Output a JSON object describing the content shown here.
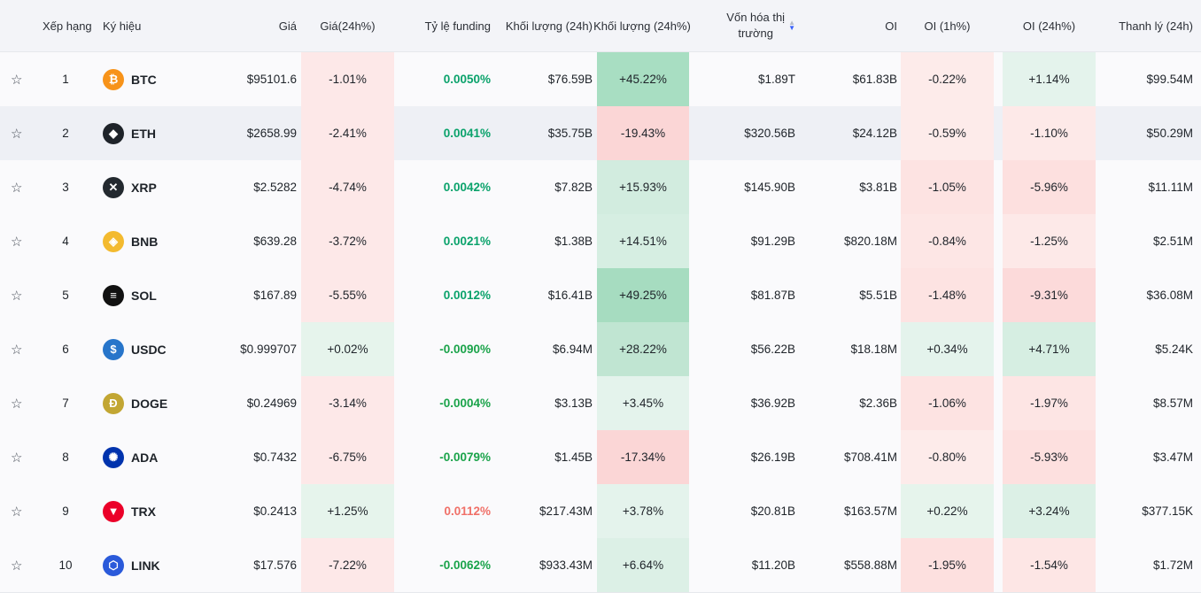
{
  "header": {
    "rank": "Xếp hạng",
    "symbol": "Ký hiệu",
    "price": "Giá",
    "price_change": "Giá(24h%)",
    "funding": "Tỷ lệ funding",
    "volume": "Khối lượng (24h)",
    "volume_change": "Khối lượng (24h%)",
    "market_cap_line1": "Vốn hóa thị",
    "market_cap_line2": "trường",
    "oi": "OI",
    "oi_1h": "OI (1h%)",
    "oi_24h": "OI (24h%)",
    "liquidation": "Thanh lý (24h)"
  },
  "colors": {
    "pink": "#fde8e8",
    "pink_strong": "#fbd6d6",
    "green_light": "#e4f3ec",
    "green_mid": "#cdeadb",
    "green_strong": "#acdfc5",
    "funding_positive": "#0aa26b",
    "funding_negative": "#1a9c3a",
    "funding_high": "#f07068"
  },
  "rows": [
    {
      "rank": "1",
      "symbol": "BTC",
      "icon": "btc-icon",
      "icon_color": "#f7931a",
      "icon_glyph": "₿",
      "price": "$95101.6",
      "price_change": "-1.01%",
      "funding": "0.0050%",
      "volume": "$76.59B",
      "volume_change": "+45.22%",
      "market_cap": "$1.89T",
      "oi": "$61.83B",
      "oi_1h": "-0.22%",
      "oi_24h": "+1.14%",
      "liquidation": "$99.54M"
    },
    {
      "rank": "2",
      "symbol": "ETH",
      "icon": "eth-icon",
      "icon_color": "#1e2329",
      "icon_glyph": "◆",
      "price": "$2658.99",
      "price_change": "-2.41%",
      "funding": "0.0041%",
      "volume": "$35.75B",
      "volume_change": "-19.43%",
      "market_cap": "$320.56B",
      "oi": "$24.12B",
      "oi_1h": "-0.59%",
      "oi_24h": "-1.10%",
      "liquidation": "$50.29M"
    },
    {
      "rank": "3",
      "symbol": "XRP",
      "icon": "xrp-icon",
      "icon_color": "#23292f",
      "icon_glyph": "✕",
      "price": "$2.5282",
      "price_change": "-4.74%",
      "funding": "0.0042%",
      "volume": "$7.82B",
      "volume_change": "+15.93%",
      "market_cap": "$145.90B",
      "oi": "$3.81B",
      "oi_1h": "-1.05%",
      "oi_24h": "-5.96%",
      "liquidation": "$11.11M"
    },
    {
      "rank": "4",
      "symbol": "BNB",
      "icon": "bnb-icon",
      "icon_color": "#f3ba2f",
      "icon_glyph": "◈",
      "price": "$639.28",
      "price_change": "-3.72%",
      "funding": "0.0021%",
      "volume": "$1.38B",
      "volume_change": "+14.51%",
      "market_cap": "$91.29B",
      "oi": "$820.18M",
      "oi_1h": "-0.84%",
      "oi_24h": "-1.25%",
      "liquidation": "$2.51M"
    },
    {
      "rank": "5",
      "symbol": "SOL",
      "icon": "sol-icon",
      "icon_color": "#111111",
      "icon_glyph": "≡",
      "price": "$167.89",
      "price_change": "-5.55%",
      "funding": "0.0012%",
      "volume": "$16.41B",
      "volume_change": "+49.25%",
      "market_cap": "$81.87B",
      "oi": "$5.51B",
      "oi_1h": "-1.48%",
      "oi_24h": "-9.31%",
      "liquidation": "$36.08M"
    },
    {
      "rank": "6",
      "symbol": "USDC",
      "icon": "usdc-icon",
      "icon_color": "#2775ca",
      "icon_glyph": "$",
      "price": "$0.999707",
      "price_change": "+0.02%",
      "funding": "-0.0090%",
      "volume": "$6.94M",
      "volume_change": "+28.22%",
      "market_cap": "$56.22B",
      "oi": "$18.18M",
      "oi_1h": "+0.34%",
      "oi_24h": "+4.71%",
      "liquidation": "$5.24K"
    },
    {
      "rank": "7",
      "symbol": "DOGE",
      "icon": "doge-icon",
      "icon_color": "#c2a633",
      "icon_glyph": "Ð",
      "price": "$0.24969",
      "price_change": "-3.14%",
      "funding": "-0.0004%",
      "volume": "$3.13B",
      "volume_change": "+3.45%",
      "market_cap": "$36.92B",
      "oi": "$2.36B",
      "oi_1h": "-1.06%",
      "oi_24h": "-1.97%",
      "liquidation": "$8.57M"
    },
    {
      "rank": "8",
      "symbol": "ADA",
      "icon": "ada-icon",
      "icon_color": "#0033ad",
      "icon_glyph": "✺",
      "price": "$0.7432",
      "price_change": "-6.75%",
      "funding": "-0.0079%",
      "volume": "$1.45B",
      "volume_change": "-17.34%",
      "market_cap": "$26.19B",
      "oi": "$708.41M",
      "oi_1h": "-0.80%",
      "oi_24h": "-5.93%",
      "liquidation": "$3.47M"
    },
    {
      "rank": "9",
      "symbol": "TRX",
      "icon": "trx-icon",
      "icon_color": "#eb0029",
      "icon_glyph": "▼",
      "price": "$0.2413",
      "price_change": "+1.25%",
      "funding": "0.0112%",
      "volume": "$217.43M",
      "volume_change": "+3.78%",
      "market_cap": "$20.81B",
      "oi": "$163.57M",
      "oi_1h": "+0.22%",
      "oi_24h": "+3.24%",
      "liquidation": "$377.15K"
    },
    {
      "rank": "10",
      "symbol": "LINK",
      "icon": "link-icon",
      "icon_color": "#2a5ada",
      "icon_glyph": "⬡",
      "price": "$17.576",
      "price_change": "-7.22%",
      "funding": "-0.0062%",
      "volume": "$933.43M",
      "volume_change": "+6.64%",
      "market_cap": "$11.20B",
      "oi": "$558.88M",
      "oi_1h": "-1.95%",
      "oi_24h": "-1.54%",
      "liquidation": "$1.72M"
    }
  ]
}
